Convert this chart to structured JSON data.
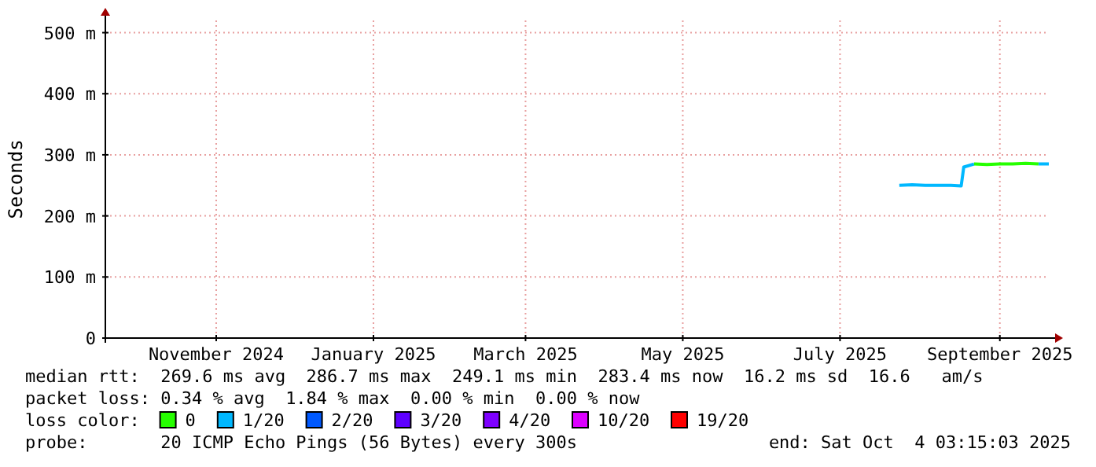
{
  "chart_data": {
    "type": "line",
    "ylabel": "Seconds",
    "x": [
      "2025-08-07",
      "2025-08-12",
      "2025-08-17",
      "2025-08-22",
      "2025-08-27",
      "2025-08-31",
      "2025-09-01",
      "2025-09-05",
      "2025-09-10",
      "2025-09-15",
      "2025-09-20",
      "2025-09-25",
      "2025-09-30",
      "2025-10-04"
    ],
    "series": [
      {
        "name": "0",
        "color": "#26ff00",
        "values": [
          null,
          null,
          null,
          null,
          null,
          null,
          null,
          285,
          284,
          285,
          285,
          286,
          285,
          null
        ]
      },
      {
        "name": "1/20",
        "color": "#00b8ff",
        "values": [
          250,
          251,
          250,
          250,
          250,
          249,
          280,
          285,
          null,
          null,
          null,
          null,
          285,
          285
        ]
      },
      {
        "name": "2/20",
        "color": "#0059ff",
        "values": [
          null,
          null,
          null,
          null,
          null,
          null,
          null,
          null,
          null,
          null,
          null,
          null,
          null,
          null
        ]
      },
      {
        "name": "3/20",
        "color": "#5e00ff",
        "values": [
          null,
          null,
          null,
          null,
          null,
          null,
          null,
          null,
          null,
          null,
          null,
          null,
          null,
          null
        ]
      },
      {
        "name": "4/20",
        "color": "#7e00ff",
        "values": [
          null,
          null,
          null,
          null,
          null,
          null,
          null,
          null,
          null,
          null,
          null,
          null,
          null,
          null
        ]
      },
      {
        "name": "10/20",
        "color": "#dd00ff",
        "values": [
          null,
          null,
          null,
          null,
          null,
          null,
          null,
          null,
          null,
          null,
          null,
          null,
          null,
          null
        ]
      },
      {
        "name": "19/20",
        "color": "#ff0000",
        "values": [
          null,
          null,
          null,
          null,
          null,
          null,
          null,
          null,
          null,
          null,
          null,
          null,
          null,
          null
        ]
      }
    ],
    "xlim": [
      "2024-10-03",
      "2025-10-04"
    ],
    "xticks": [
      {
        "value": "2024-11-15",
        "label": "November 2024"
      },
      {
        "value": "2025-01-15",
        "label": "January 2025"
      },
      {
        "value": "2025-03-15",
        "label": "March 2025"
      },
      {
        "value": "2025-05-15",
        "label": "May 2025"
      },
      {
        "value": "2025-07-15",
        "label": "July 2025"
      },
      {
        "value": "2025-09-15",
        "label": "September 2025"
      }
    ],
    "ylim": [
      0,
      520
    ],
    "yticks": [
      0,
      {
        "value": 100,
        "label": "100 m"
      },
      {
        "value": 200,
        "label": "200 m"
      },
      {
        "value": 300,
        "label": "300 m"
      },
      {
        "value": 400,
        "label": "400 m"
      },
      {
        "value": 500,
        "label": "500 m"
      }
    ],
    "grid": true,
    "legend": "bottom",
    "legend_title": "loss color:",
    "annotations": [
      "median rtt:  269.6 ms avg  286.7 ms max  249.1 ms min  283.4 ms now  16.2 ms sd  16.6   am/s",
      "packet loss: 0.34 % avg  1.84 % max  0.00 % min  0.00 % now",
      "probe:       20 ICMP Echo Pings (56 Bytes) every 300s",
      "end: Sat Oct  4 03:15:03 2025"
    ]
  }
}
